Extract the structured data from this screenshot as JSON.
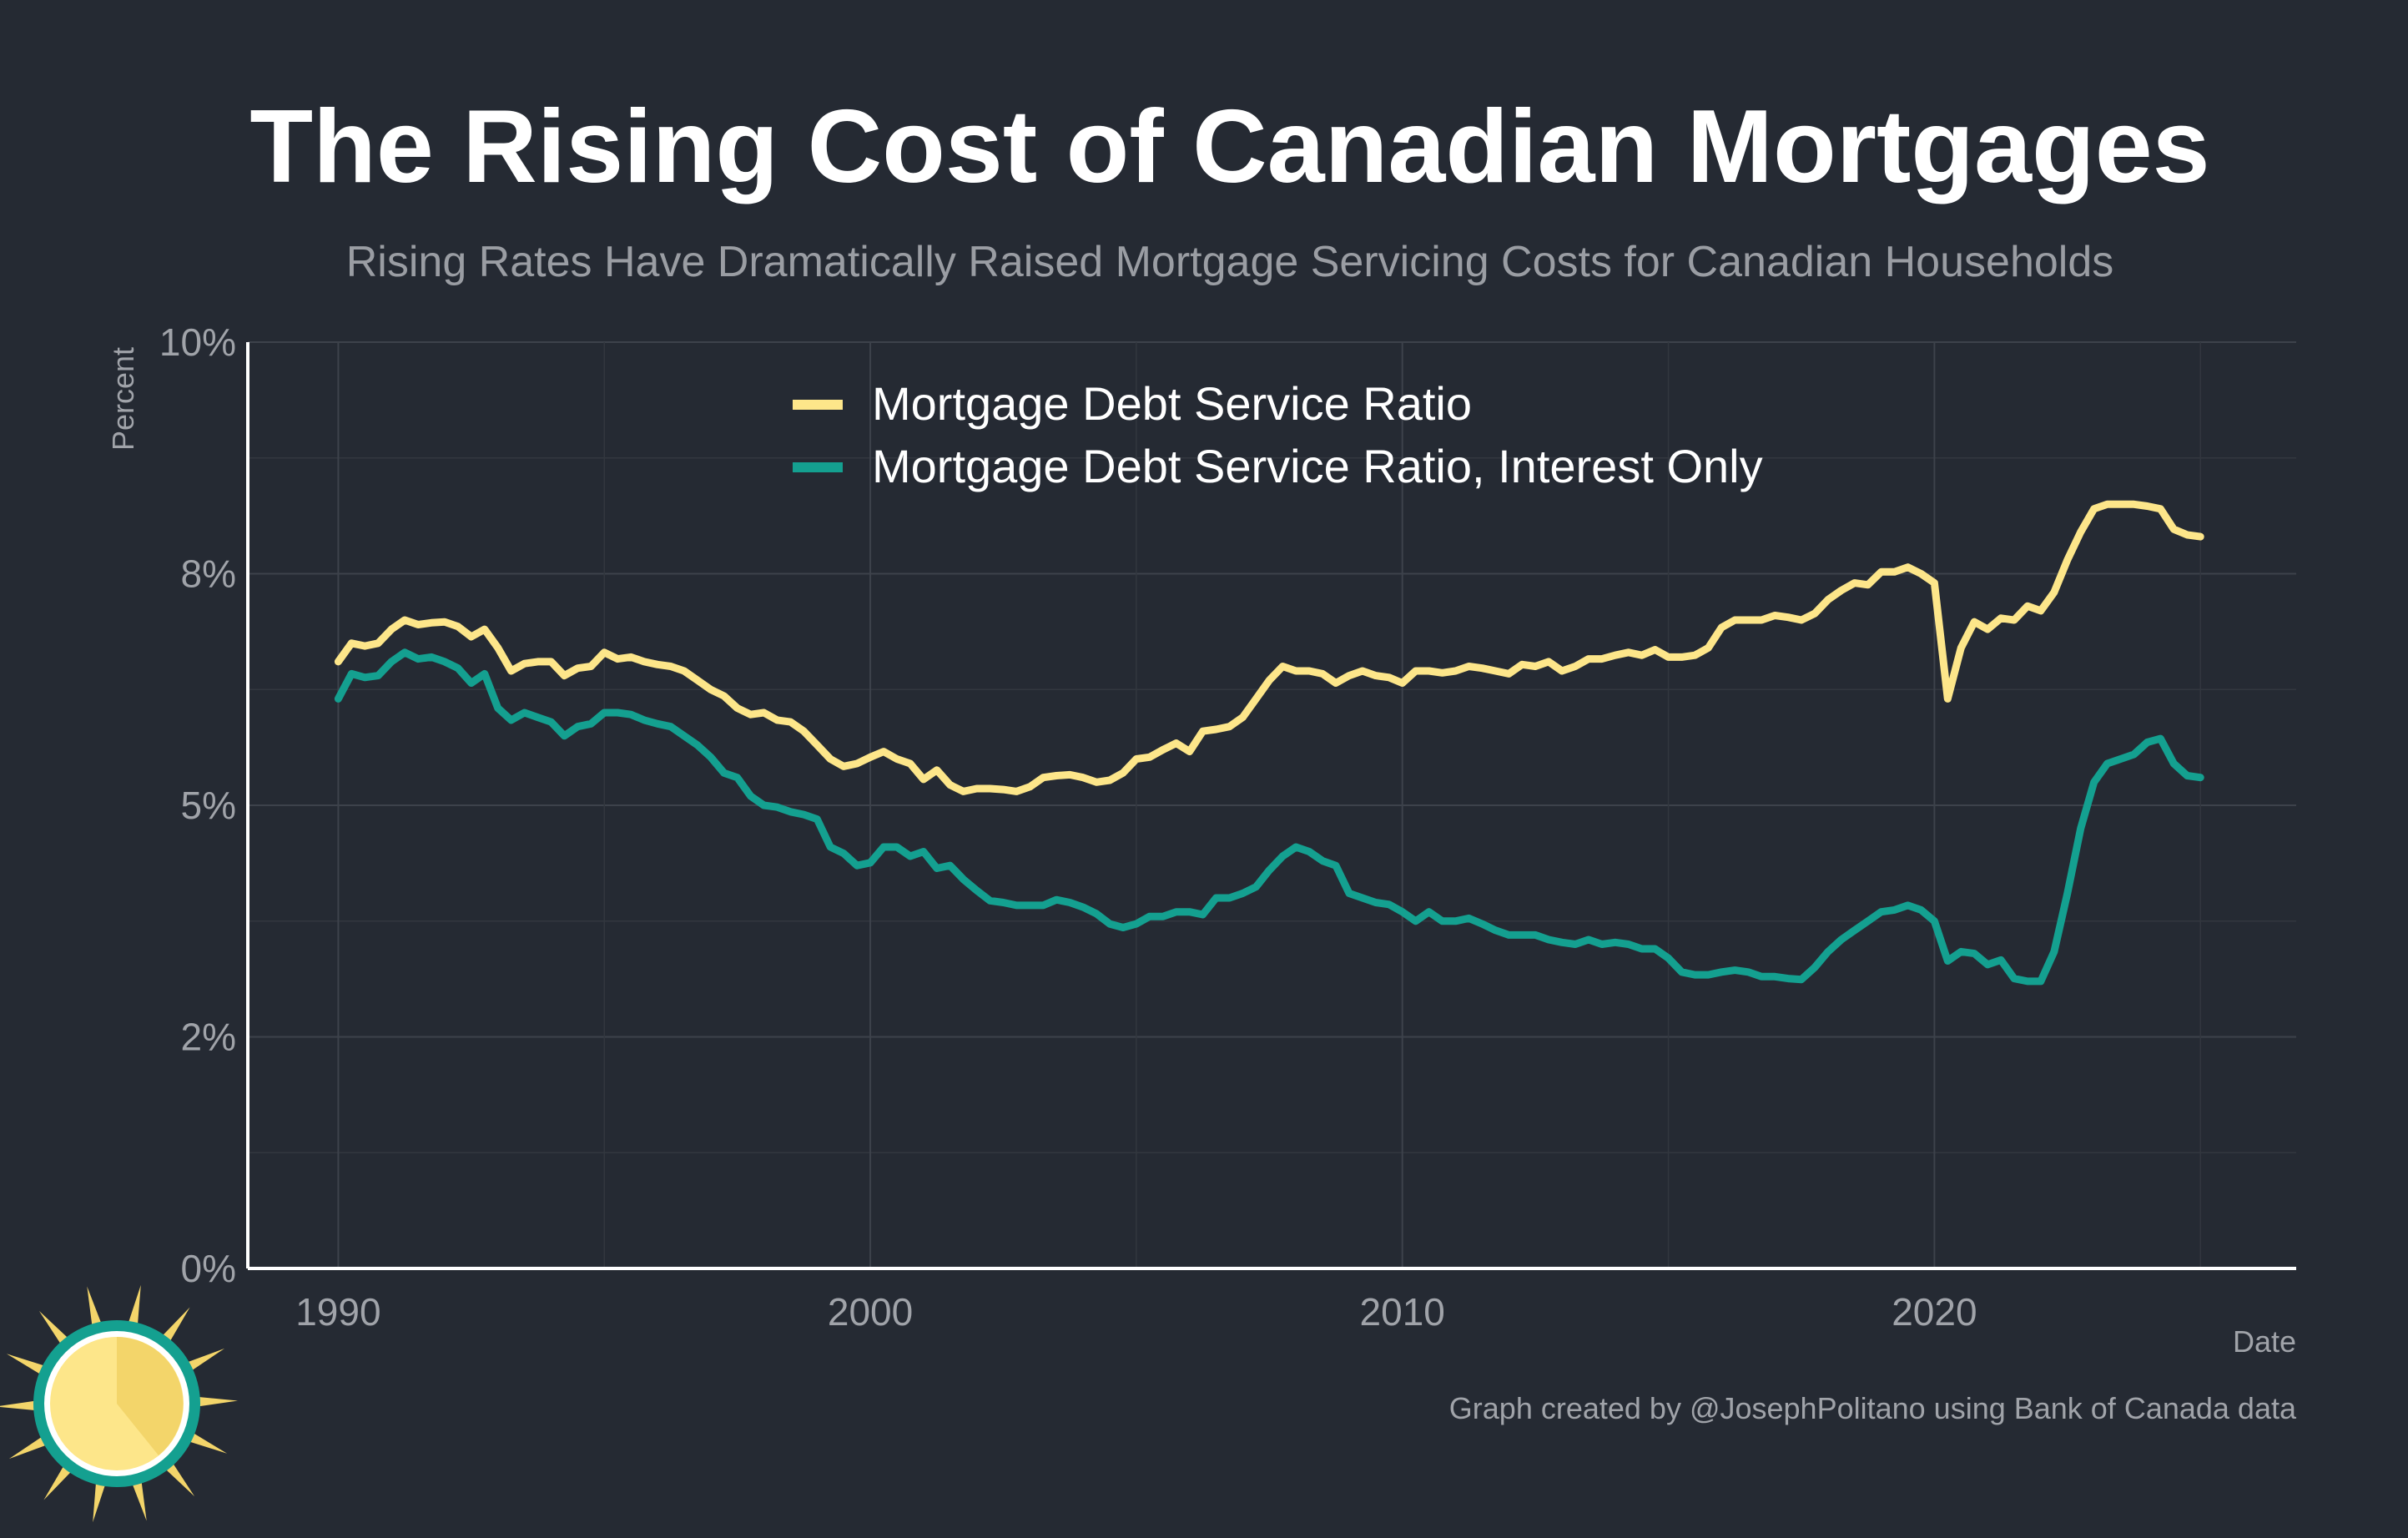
{
  "header": {
    "title": "The Rising Cost of Canadian Mortgages",
    "subtitle": "Rising Rates Have Dramatically Raised Mortgage Servicing Costs for Canadian Households"
  },
  "footer": {
    "caption": "Graph created by @JosephPolitano using Bank of Canada data"
  },
  "colors": {
    "background": "#252a33",
    "series_total": "#fde68a",
    "series_interest": "#14a090",
    "axis": "#ffffff"
  },
  "logo": {
    "icon": "sun-logo-icon"
  },
  "chart_data": {
    "type": "line",
    "xlabel": "Date",
    "ylabel": "Percent",
    "xlim": [
      1988.3,
      2026.8
    ],
    "ylim": [
      0,
      10
    ],
    "x_ticks": [
      1990,
      2000,
      2010,
      2020
    ],
    "x_tick_labels": [
      "1990",
      "2000",
      "2010",
      "2020"
    ],
    "y_ticks": [
      0,
      2.5,
      5,
      7.5,
      10
    ],
    "y_tick_labels": [
      "0%",
      "2%",
      "5%",
      "8%",
      "10%"
    ],
    "grid": true,
    "legend_position": "top-center",
    "series": [
      {
        "name": "Mortgage Debt Service Ratio",
        "color": "#fde68a",
        "points": [
          [
            1990.0,
            6.55
          ],
          [
            1990.25,
            6.75
          ],
          [
            1990.5,
            6.72
          ],
          [
            1990.75,
            6.75
          ],
          [
            1991.0,
            6.9
          ],
          [
            1991.25,
            7.0
          ],
          [
            1991.5,
            6.95
          ],
          [
            1991.75,
            6.97
          ],
          [
            1992.0,
            6.98
          ],
          [
            1992.25,
            6.93
          ],
          [
            1992.5,
            6.82
          ],
          [
            1992.75,
            6.9
          ],
          [
            1993.0,
            6.7
          ],
          [
            1993.25,
            6.45
          ],
          [
            1993.5,
            6.53
          ],
          [
            1993.75,
            6.55
          ],
          [
            1994.0,
            6.55
          ],
          [
            1994.25,
            6.4
          ],
          [
            1994.5,
            6.48
          ],
          [
            1994.75,
            6.5
          ],
          [
            1995.0,
            6.65
          ],
          [
            1995.25,
            6.58
          ],
          [
            1995.5,
            6.6
          ],
          [
            1995.75,
            6.55
          ],
          [
            1996.0,
            6.52
          ],
          [
            1996.25,
            6.5
          ],
          [
            1996.5,
            6.45
          ],
          [
            1996.75,
            6.35
          ],
          [
            1997.0,
            6.25
          ],
          [
            1997.25,
            6.18
          ],
          [
            1997.5,
            6.05
          ],
          [
            1997.75,
            5.98
          ],
          [
            1998.0,
            6.0
          ],
          [
            1998.25,
            5.92
          ],
          [
            1998.5,
            5.9
          ],
          [
            1998.75,
            5.8
          ],
          [
            1999.0,
            5.65
          ],
          [
            1999.25,
            5.5
          ],
          [
            1999.5,
            5.42
          ],
          [
            1999.75,
            5.45
          ],
          [
            2000.0,
            5.52
          ],
          [
            2000.25,
            5.58
          ],
          [
            2000.5,
            5.5
          ],
          [
            2000.75,
            5.45
          ],
          [
            2001.0,
            5.28
          ],
          [
            2001.25,
            5.38
          ],
          [
            2001.5,
            5.22
          ],
          [
            2001.75,
            5.15
          ],
          [
            2002.0,
            5.18
          ],
          [
            2002.25,
            5.18
          ],
          [
            2002.5,
            5.17
          ],
          [
            2002.75,
            5.15
          ],
          [
            2003.0,
            5.2
          ],
          [
            2003.25,
            5.3
          ],
          [
            2003.5,
            5.32
          ],
          [
            2003.75,
            5.33
          ],
          [
            2004.0,
            5.3
          ],
          [
            2004.25,
            5.25
          ],
          [
            2004.5,
            5.27
          ],
          [
            2004.75,
            5.35
          ],
          [
            2005.0,
            5.5
          ],
          [
            2005.25,
            5.52
          ],
          [
            2005.5,
            5.6
          ],
          [
            2005.75,
            5.67
          ],
          [
            2006.0,
            5.58
          ],
          [
            2006.25,
            5.8
          ],
          [
            2006.5,
            5.82
          ],
          [
            2006.75,
            5.85
          ],
          [
            2007.0,
            5.95
          ],
          [
            2007.25,
            6.15
          ],
          [
            2007.5,
            6.35
          ],
          [
            2007.75,
            6.5
          ],
          [
            2008.0,
            6.45
          ],
          [
            2008.25,
            6.45
          ],
          [
            2008.5,
            6.42
          ],
          [
            2008.75,
            6.32
          ],
          [
            2009.0,
            6.4
          ],
          [
            2009.25,
            6.45
          ],
          [
            2009.5,
            6.4
          ],
          [
            2009.75,
            6.38
          ],
          [
            2010.0,
            6.32
          ],
          [
            2010.25,
            6.45
          ],
          [
            2010.5,
            6.45
          ],
          [
            2010.75,
            6.43
          ],
          [
            2011.0,
            6.45
          ],
          [
            2011.25,
            6.5
          ],
          [
            2011.5,
            6.48
          ],
          [
            2011.75,
            6.45
          ],
          [
            2012.0,
            6.42
          ],
          [
            2012.25,
            6.52
          ],
          [
            2012.5,
            6.5
          ],
          [
            2012.75,
            6.55
          ],
          [
            2013.0,
            6.45
          ],
          [
            2013.25,
            6.5
          ],
          [
            2013.5,
            6.58
          ],
          [
            2013.75,
            6.58
          ],
          [
            2014.0,
            6.62
          ],
          [
            2014.25,
            6.65
          ],
          [
            2014.5,
            6.62
          ],
          [
            2014.75,
            6.68
          ],
          [
            2015.0,
            6.6
          ],
          [
            2015.25,
            6.6
          ],
          [
            2015.5,
            6.62
          ],
          [
            2015.75,
            6.7
          ],
          [
            2016.0,
            6.92
          ],
          [
            2016.25,
            7.0
          ],
          [
            2016.5,
            7.0
          ],
          [
            2016.75,
            7.0
          ],
          [
            2017.0,
            7.05
          ],
          [
            2017.25,
            7.03
          ],
          [
            2017.5,
            7.0
          ],
          [
            2017.75,
            7.07
          ],
          [
            2018.0,
            7.22
          ],
          [
            2018.25,
            7.32
          ],
          [
            2018.5,
            7.4
          ],
          [
            2018.75,
            7.38
          ],
          [
            2019.0,
            7.52
          ],
          [
            2019.25,
            7.52
          ],
          [
            2019.5,
            7.57
          ],
          [
            2019.75,
            7.5
          ],
          [
            2020.0,
            7.4
          ],
          [
            2020.25,
            6.15
          ],
          [
            2020.5,
            6.7
          ],
          [
            2020.75,
            6.98
          ],
          [
            2021.0,
            6.9
          ],
          [
            2021.25,
            7.02
          ],
          [
            2021.5,
            7.0
          ],
          [
            2021.75,
            7.15
          ],
          [
            2022.0,
            7.1
          ],
          [
            2022.25,
            7.3
          ],
          [
            2022.5,
            7.65
          ],
          [
            2022.75,
            7.95
          ],
          [
            2023.0,
            8.2
          ],
          [
            2023.25,
            8.25
          ],
          [
            2023.5,
            8.25
          ],
          [
            2023.75,
            8.25
          ],
          [
            2024.0,
            8.23
          ],
          [
            2024.25,
            8.2
          ],
          [
            2024.5,
            7.98
          ],
          [
            2024.75,
            7.92
          ],
          [
            2025.0,
            7.9
          ]
        ]
      },
      {
        "name": "Mortgage Debt Service Ratio, Interest Only",
        "color": "#14a090",
        "points": [
          [
            1990.0,
            6.15
          ],
          [
            1990.25,
            6.42
          ],
          [
            1990.5,
            6.38
          ],
          [
            1990.75,
            6.4
          ],
          [
            1991.0,
            6.55
          ],
          [
            1991.25,
            6.65
          ],
          [
            1991.5,
            6.58
          ],
          [
            1991.75,
            6.6
          ],
          [
            1992.0,
            6.55
          ],
          [
            1992.25,
            6.48
          ],
          [
            1992.5,
            6.32
          ],
          [
            1992.75,
            6.42
          ],
          [
            1993.0,
            6.05
          ],
          [
            1993.25,
            5.92
          ],
          [
            1993.5,
            6.0
          ],
          [
            1993.75,
            5.95
          ],
          [
            1994.0,
            5.9
          ],
          [
            1994.25,
            5.75
          ],
          [
            1994.5,
            5.85
          ],
          [
            1994.75,
            5.88
          ],
          [
            1995.0,
            6.0
          ],
          [
            1995.25,
            6.0
          ],
          [
            1995.5,
            5.98
          ],
          [
            1995.75,
            5.92
          ],
          [
            1996.0,
            5.88
          ],
          [
            1996.25,
            5.85
          ],
          [
            1996.5,
            5.75
          ],
          [
            1996.75,
            5.65
          ],
          [
            1997.0,
            5.52
          ],
          [
            1997.25,
            5.35
          ],
          [
            1997.5,
            5.3
          ],
          [
            1997.75,
            5.1
          ],
          [
            1998.0,
            5.0
          ],
          [
            1998.25,
            4.98
          ],
          [
            1998.5,
            4.93
          ],
          [
            1998.75,
            4.9
          ],
          [
            1999.0,
            4.85
          ],
          [
            1999.25,
            4.55
          ],
          [
            1999.5,
            4.48
          ],
          [
            1999.75,
            4.35
          ],
          [
            2000.0,
            4.38
          ],
          [
            2000.25,
            4.55
          ],
          [
            2000.5,
            4.55
          ],
          [
            2000.75,
            4.45
          ],
          [
            2001.0,
            4.5
          ],
          [
            2001.25,
            4.32
          ],
          [
            2001.5,
            4.35
          ],
          [
            2001.75,
            4.2
          ],
          [
            2002.0,
            4.08
          ],
          [
            2002.25,
            3.97
          ],
          [
            2002.5,
            3.95
          ],
          [
            2002.75,
            3.92
          ],
          [
            2003.0,
            3.92
          ],
          [
            2003.25,
            3.92
          ],
          [
            2003.5,
            3.98
          ],
          [
            2003.75,
            3.95
          ],
          [
            2004.0,
            3.9
          ],
          [
            2004.25,
            3.83
          ],
          [
            2004.5,
            3.72
          ],
          [
            2004.75,
            3.68
          ],
          [
            2005.0,
            3.72
          ],
          [
            2005.25,
            3.8
          ],
          [
            2005.5,
            3.8
          ],
          [
            2005.75,
            3.85
          ],
          [
            2006.0,
            3.85
          ],
          [
            2006.25,
            3.82
          ],
          [
            2006.5,
            4.0
          ],
          [
            2006.75,
            4.0
          ],
          [
            2007.0,
            4.05
          ],
          [
            2007.25,
            4.12
          ],
          [
            2007.5,
            4.3
          ],
          [
            2007.75,
            4.45
          ],
          [
            2008.0,
            4.55
          ],
          [
            2008.25,
            4.5
          ],
          [
            2008.5,
            4.4
          ],
          [
            2008.75,
            4.35
          ],
          [
            2009.0,
            4.05
          ],
          [
            2009.25,
            4.0
          ],
          [
            2009.5,
            3.95
          ],
          [
            2009.75,
            3.93
          ],
          [
            2010.0,
            3.85
          ],
          [
            2010.25,
            3.75
          ],
          [
            2010.5,
            3.85
          ],
          [
            2010.75,
            3.75
          ],
          [
            2011.0,
            3.75
          ],
          [
            2011.25,
            3.78
          ],
          [
            2011.5,
            3.72
          ],
          [
            2011.75,
            3.65
          ],
          [
            2012.0,
            3.6
          ],
          [
            2012.25,
            3.6
          ],
          [
            2012.5,
            3.6
          ],
          [
            2012.75,
            3.55
          ],
          [
            2013.0,
            3.52
          ],
          [
            2013.25,
            3.5
          ],
          [
            2013.5,
            3.55
          ],
          [
            2013.75,
            3.5
          ],
          [
            2014.0,
            3.52
          ],
          [
            2014.25,
            3.5
          ],
          [
            2014.5,
            3.45
          ],
          [
            2014.75,
            3.45
          ],
          [
            2015.0,
            3.35
          ],
          [
            2015.25,
            3.2
          ],
          [
            2015.5,
            3.17
          ],
          [
            2015.75,
            3.17
          ],
          [
            2016.0,
            3.2
          ],
          [
            2016.25,
            3.22
          ],
          [
            2016.5,
            3.2
          ],
          [
            2016.75,
            3.15
          ],
          [
            2017.0,
            3.15
          ],
          [
            2017.25,
            3.13
          ],
          [
            2017.5,
            3.12
          ],
          [
            2017.75,
            3.25
          ],
          [
            2018.0,
            3.42
          ],
          [
            2018.25,
            3.55
          ],
          [
            2018.5,
            3.65
          ],
          [
            2018.75,
            3.75
          ],
          [
            2019.0,
            3.85
          ],
          [
            2019.25,
            3.87
          ],
          [
            2019.5,
            3.92
          ],
          [
            2019.75,
            3.87
          ],
          [
            2020.0,
            3.75
          ],
          [
            2020.25,
            3.32
          ],
          [
            2020.5,
            3.42
          ],
          [
            2020.75,
            3.4
          ],
          [
            2021.0,
            3.28
          ],
          [
            2021.25,
            3.33
          ],
          [
            2021.5,
            3.13
          ],
          [
            2021.75,
            3.1
          ],
          [
            2022.0,
            3.1
          ],
          [
            2022.25,
            3.42
          ],
          [
            2022.5,
            4.05
          ],
          [
            2022.75,
            4.75
          ],
          [
            2023.0,
            5.25
          ],
          [
            2023.25,
            5.45
          ],
          [
            2023.5,
            5.5
          ],
          [
            2023.75,
            5.55
          ],
          [
            2024.0,
            5.68
          ],
          [
            2024.25,
            5.72
          ],
          [
            2024.5,
            5.45
          ],
          [
            2024.75,
            5.32
          ],
          [
            2025.0,
            5.3
          ]
        ]
      }
    ]
  }
}
